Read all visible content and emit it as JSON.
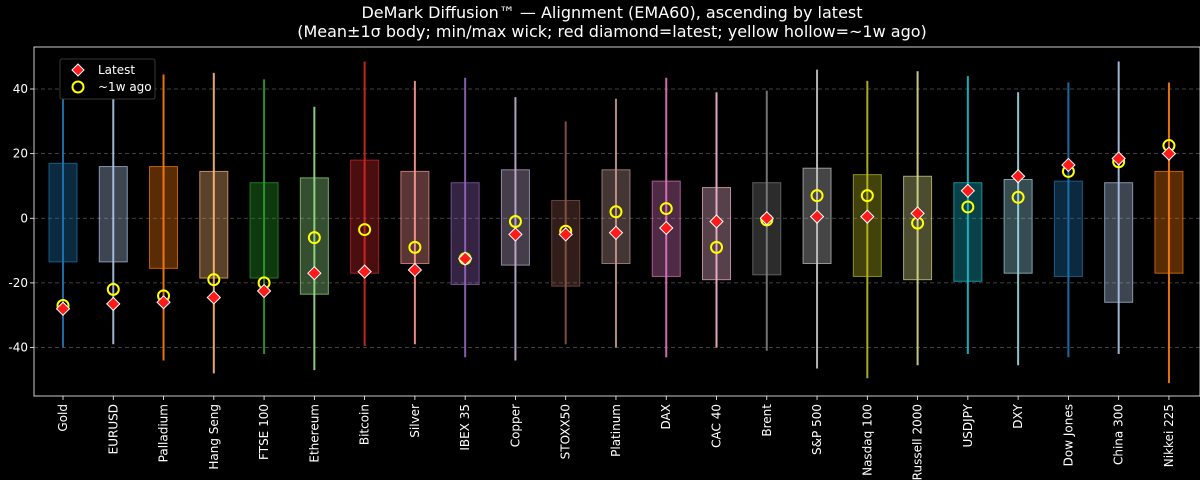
{
  "chart_data": {
    "type": "box",
    "title": "DeMark Diffusion™ — Alignment (EMA60), ascending by latest",
    "subtitle": "(Mean±1σ body; min/max wick; red diamond=latest; yellow hollow=~1w ago)",
    "xlabel": "",
    "ylabel": "",
    "ylim": [
      -55,
      53
    ],
    "yticks": [
      -40,
      -20,
      0,
      20,
      40
    ],
    "grid": true,
    "legend": {
      "placement": "top-left",
      "entries": [
        {
          "label": "Latest",
          "marker": "red-diamond"
        },
        {
          "label": "~1w ago",
          "marker": "yellow-hollow-circle"
        }
      ]
    },
    "categories": [
      "Gold",
      "EURUSD",
      "Palladium",
      "Hang Seng",
      "FTSE 100",
      "Ethereum",
      "Bitcoin",
      "Silver",
      "IBEX 35",
      "Copper",
      "STOXX50",
      "Platinum",
      "DAX",
      "CAC 40",
      "Brent",
      "S&P 500",
      "Nasdaq 100",
      "Russell 2000",
      "USDJPY",
      "DXY",
      "Dow Jones",
      "China 300",
      "Nikkei 225"
    ],
    "colors": [
      "#1f77b4",
      "#aec7e8",
      "#ff7f0e",
      "#ffbb78",
      "#2ca02c",
      "#98df8a",
      "#d62728",
      "#ff9896",
      "#9467bd",
      "#c5b0d5",
      "#8c564b",
      "#c49c94",
      "#e377c2",
      "#f7b6d2",
      "#7f7f7f",
      "#c7c7c7",
      "#bcbd22",
      "#dbdb8d",
      "#17becf",
      "#9edae5",
      "#1f77b4",
      "#aec7e8",
      "#ff7f0e"
    ],
    "mean_minus_sd": [
      -13.5,
      -13.5,
      -15.5,
      -18.5,
      -18.5,
      -23.5,
      -17,
      -14,
      -20.5,
      -14.5,
      -21,
      -14,
      -18,
      -19,
      -17.5,
      -14,
      -18,
      -19,
      -19.5,
      -17,
      -18,
      -26,
      -17
    ],
    "mean_plus_sd": [
      17,
      16,
      16,
      14.5,
      11,
      12.5,
      18,
      14.5,
      11,
      15,
      5.5,
      15,
      11.5,
      9.5,
      11,
      15.5,
      13.5,
      13,
      11,
      12,
      11.5,
      11,
      14.5
    ],
    "min": [
      -40,
      -39,
      -44,
      -48,
      -42,
      -47,
      -39.5,
      -39,
      -43,
      -44,
      -39,
      -40,
      -43,
      -40,
      -41,
      -46.5,
      -49.5,
      -45.5,
      -42,
      -45.5,
      -43,
      -42,
      -51
    ],
    "max": [
      45,
      45,
      44.5,
      45,
      43,
      34.5,
      48.5,
      42.5,
      43.5,
      37.5,
      30,
      37,
      43.5,
      39,
      39.5,
      46,
      42.5,
      45.5,
      44,
      39,
      42,
      48.5,
      42
    ],
    "latest": [
      -28,
      -26.5,
      -26,
      -24.5,
      -22.5,
      -17,
      -16.5,
      -16,
      -12.5,
      -5,
      -5,
      -4.5,
      -3,
      -1,
      0,
      0.5,
      0.5,
      1.5,
      8.5,
      13,
      16.5,
      18.5,
      20
    ],
    "week_ago": [
      -27,
      -22,
      -24,
      -19,
      -20,
      -6,
      -3.5,
      -9,
      -12.5,
      -1,
      -4,
      2,
      3,
      -9,
      -0.5,
      7,
      7,
      -1.5,
      3.5,
      6.5,
      14.5,
      17.5,
      22.5
    ]
  }
}
